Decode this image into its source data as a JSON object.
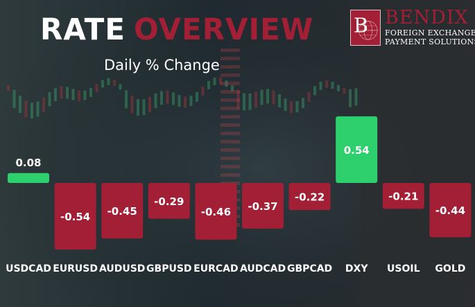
{
  "header": {
    "title_part1": "RATE",
    "title_part2": "OVERVIEW",
    "subtitle": "Daily % Change"
  },
  "logo": {
    "initial": "B",
    "name": "BENDIX",
    "tagline_line1": "FOREIGN EXCHANGE &",
    "tagline_line2": "PAYMENT SOLUTIONS"
  },
  "colors": {
    "positive": "#2ed06e",
    "negative": "#a31f36",
    "title_accent": "#a31f36",
    "text": "#ffffff"
  },
  "chart_data": {
    "type": "bar",
    "categories": [
      "USDCAD",
      "EURUSD",
      "AUDUSD",
      "GBPUSD",
      "EURCAD",
      "AUDCAD",
      "GBPCAD",
      "DXY",
      "USOIL",
      "GOLD"
    ],
    "values": [
      0.08,
      -0.54,
      -0.45,
      -0.29,
      -0.46,
      -0.37,
      -0.22,
      0.54,
      -0.21,
      -0.44
    ],
    "labels": [
      "0.08",
      "-0.54",
      "-0.45",
      "-0.29",
      "-0.46",
      "-0.37",
      "-0.22",
      "0.54",
      "-0.21",
      "-0.44"
    ],
    "title": "RATE OVERVIEW",
    "subtitle": "Daily % Change",
    "xlabel": "",
    "ylabel": "",
    "ylim": [
      -0.6,
      0.6
    ],
    "grid": false,
    "legend": "none"
  }
}
